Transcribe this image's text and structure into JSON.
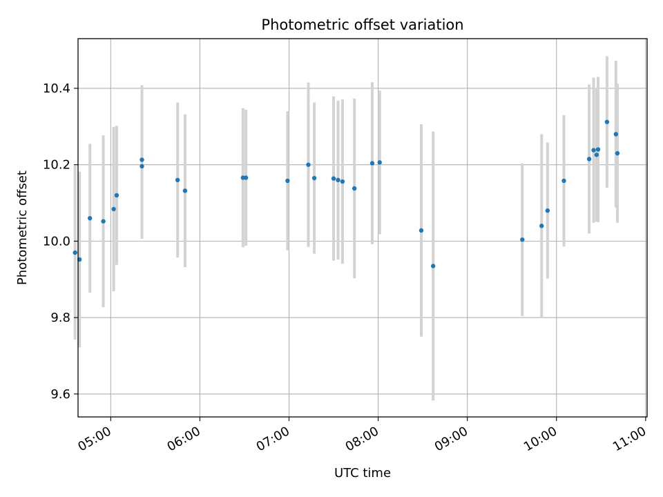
{
  "chart_data": {
    "type": "scatter",
    "title": "Photometric offset variation",
    "xlabel": "UTC time",
    "ylabel": "Photometric offset",
    "x_tick_labels": [
      "05:00",
      "06:00",
      "07:00",
      "08:00",
      "09:00",
      "10:00",
      "11:00"
    ],
    "y_tick_labels": [
      "9.6",
      "9.8",
      "10.0",
      "10.2",
      "10.4"
    ],
    "xlim": [
      "04:38",
      "11:01"
    ],
    "ylim": [
      9.54,
      10.53
    ],
    "grid": true,
    "colors": {
      "points": "#1f77b4",
      "errorbars": "#d3d3d3",
      "grid": "#b0b0b0"
    },
    "series": [
      {
        "points": [
          {
            "x": "04:36",
            "y": 9.97,
            "err": 0.228
          },
          {
            "x": "04:39",
            "y": 9.952,
            "err": 0.23
          },
          {
            "x": "04:46",
            "y": 10.06,
            "err": 0.195
          },
          {
            "x": "04:55",
            "y": 10.052,
            "err": 0.225
          },
          {
            "x": "05:02",
            "y": 10.084,
            "err": 0.215
          },
          {
            "x": "05:04",
            "y": 10.12,
            "err": 0.182
          },
          {
            "x": "05:21",
            "y": 10.213,
            "err": 0.195
          },
          {
            "x": "05:21",
            "y": 10.196,
            "err": 0.19
          },
          {
            "x": "05:45",
            "y": 10.16,
            "err": 0.203
          },
          {
            "x": "05:50",
            "y": 10.132,
            "err": 0.2
          },
          {
            "x": "06:29",
            "y": 10.166,
            "err": 0.182
          },
          {
            "x": "06:31",
            "y": 10.166,
            "err": 0.178
          },
          {
            "x": "06:59",
            "y": 10.158,
            "err": 0.182
          },
          {
            "x": "07:13",
            "y": 10.2,
            "err": 0.215
          },
          {
            "x": "07:17",
            "y": 10.165,
            "err": 0.198
          },
          {
            "x": "07:30",
            "y": 10.164,
            "err": 0.215
          },
          {
            "x": "07:33",
            "y": 10.16,
            "err": 0.208
          },
          {
            "x": "07:36",
            "y": 10.156,
            "err": 0.215
          },
          {
            "x": "07:44",
            "y": 10.138,
            "err": 0.235
          },
          {
            "x": "07:56",
            "y": 10.204,
            "err": 0.212
          },
          {
            "x": "08:01",
            "y": 10.206,
            "err": 0.188
          },
          {
            "x": "08:29",
            "y": 10.028,
            "err": 0.278
          },
          {
            "x": "08:37",
            "y": 9.935,
            "err": 0.352
          },
          {
            "x": "09:37",
            "y": 10.004,
            "err": 0.2
          },
          {
            "x": "09:50",
            "y": 10.04,
            "err": 0.24
          },
          {
            "x": "09:54",
            "y": 10.08,
            "err": 0.178
          },
          {
            "x": "10:05",
            "y": 10.158,
            "err": 0.172
          },
          {
            "x": "10:22",
            "y": 10.215,
            "err": 0.195
          },
          {
            "x": "10:25",
            "y": 10.238,
            "err": 0.19
          },
          {
            "x": "10:27",
            "y": 10.226,
            "err": 0.175
          },
          {
            "x": "10:28",
            "y": 10.24,
            "err": 0.19
          },
          {
            "x": "10:34",
            "y": 10.312,
            "err": 0.172
          },
          {
            "x": "10:40",
            "y": 10.28,
            "err": 0.192
          },
          {
            "x": "10:41",
            "y": 10.23,
            "err": 0.182
          }
        ]
      }
    ]
  }
}
